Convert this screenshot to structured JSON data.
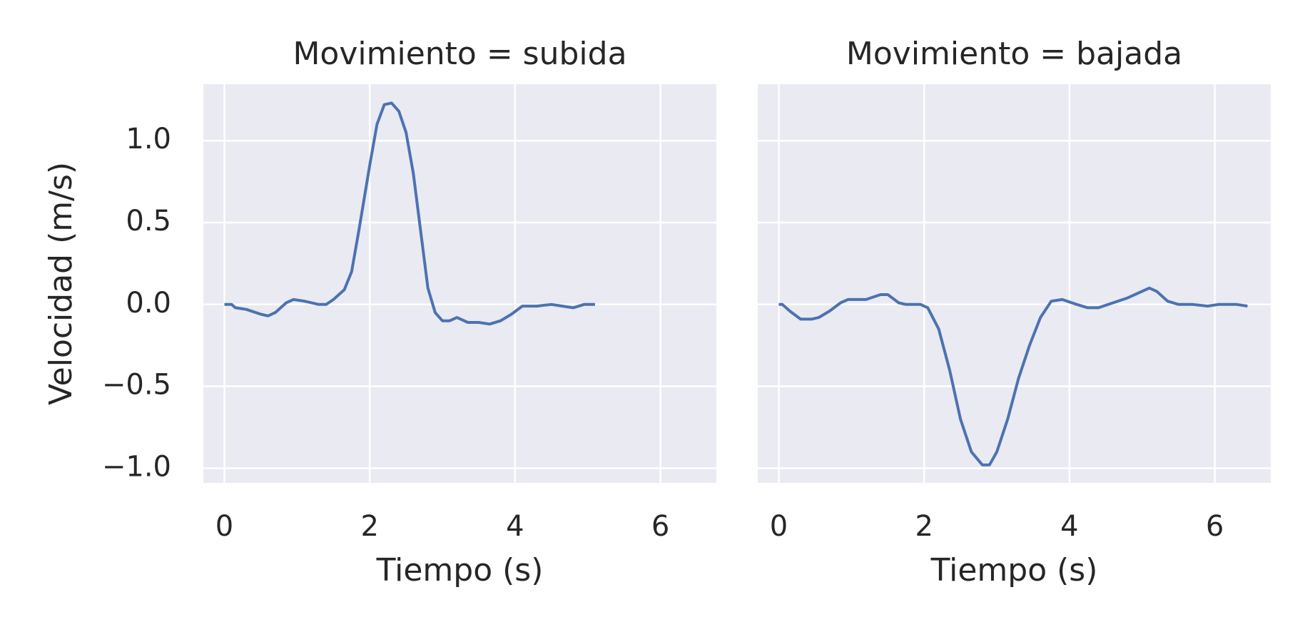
{
  "chart_data": [
    {
      "type": "line",
      "title": "Movimiento = subida",
      "xlabel": "Tiempo (s)",
      "ylabel": "Velocidad (m/s)",
      "xlim": [
        -0.29,
        6.77
      ],
      "ylim": [
        -1.09,
        1.345
      ],
      "xticks": [
        0,
        2,
        4,
        6
      ],
      "yticks": [
        {
          "value": -1.0,
          "label": "−1.0"
        },
        {
          "value": -0.5,
          "label": "−0.5"
        },
        {
          "value": 0,
          "label": "0.0"
        },
        0.5,
        {
          "value": 1.0,
          "label": "1.0"
        }
      ],
      "grid": true,
      "series": [
        {
          "color": "#4c72b0",
          "x": [
            0,
            0.1,
            0.15,
            0.3,
            0.5,
            0.6,
            0.7,
            0.85,
            0.95,
            1.1,
            1.3,
            1.4,
            1.5,
            1.65,
            1.75,
            1.85,
            2.0,
            2.1,
            2.2,
            2.3,
            2.4,
            2.5,
            2.6,
            2.7,
            2.8,
            2.9,
            3.0,
            3.1,
            3.2,
            3.35,
            3.5,
            3.65,
            3.8,
            3.95,
            4.1,
            4.3,
            4.5,
            4.65,
            4.8,
            4.95,
            5.1
          ],
          "values": [
            0,
            0,
            -0.02,
            -0.03,
            -0.06,
            -0.07,
            -0.05,
            0.01,
            0.03,
            0.02,
            0,
            0,
            0.03,
            0.09,
            0.2,
            0.45,
            0.85,
            1.1,
            1.22,
            1.23,
            1.18,
            1.05,
            0.8,
            0.45,
            0.1,
            -0.05,
            -0.1,
            -0.1,
            -0.08,
            -0.11,
            -0.11,
            -0.12,
            -0.1,
            -0.06,
            -0.01,
            -0.01,
            0,
            -0.01,
            -0.02,
            0,
            0
          ]
        }
      ]
    },
    {
      "type": "line",
      "title": "Movimiento = bajada",
      "xlabel": "Tiempo (s)",
      "xlim": [
        -0.29,
        6.77
      ],
      "ylim": [
        -1.09,
        1.345
      ],
      "xticks": [
        0,
        2,
        4,
        6
      ],
      "yticks": [
        -1.0,
        -0.5,
        0,
        0.5,
        1.0
      ],
      "grid": true,
      "series": [
        {
          "color": "#4c72b0",
          "x": [
            0,
            0.05,
            0.15,
            0.3,
            0.45,
            0.55,
            0.7,
            0.85,
            0.95,
            1.2,
            1.4,
            1.5,
            1.65,
            1.75,
            1.95,
            2.05,
            2.2,
            2.35,
            2.5,
            2.65,
            2.8,
            2.9,
            3.0,
            3.15,
            3.3,
            3.45,
            3.6,
            3.75,
            3.9,
            4.1,
            4.25,
            4.4,
            4.6,
            4.8,
            4.95,
            5.1,
            5.2,
            5.35,
            5.5,
            5.7,
            5.9,
            6.05,
            6.3,
            6.45
          ],
          "values": [
            0,
            0,
            -0.04,
            -0.09,
            -0.09,
            -0.08,
            -0.04,
            0.01,
            0.03,
            0.03,
            0.06,
            0.06,
            0.01,
            0,
            0,
            -0.02,
            -0.15,
            -0.4,
            -0.7,
            -0.9,
            -0.98,
            -0.98,
            -0.9,
            -0.7,
            -0.45,
            -0.25,
            -0.08,
            0.02,
            0.03,
            0,
            -0.02,
            -0.02,
            0.01,
            0.04,
            0.07,
            0.1,
            0.08,
            0.02,
            0,
            0,
            -0.01,
            0,
            0,
            -0.01
          ]
        }
      ]
    }
  ]
}
